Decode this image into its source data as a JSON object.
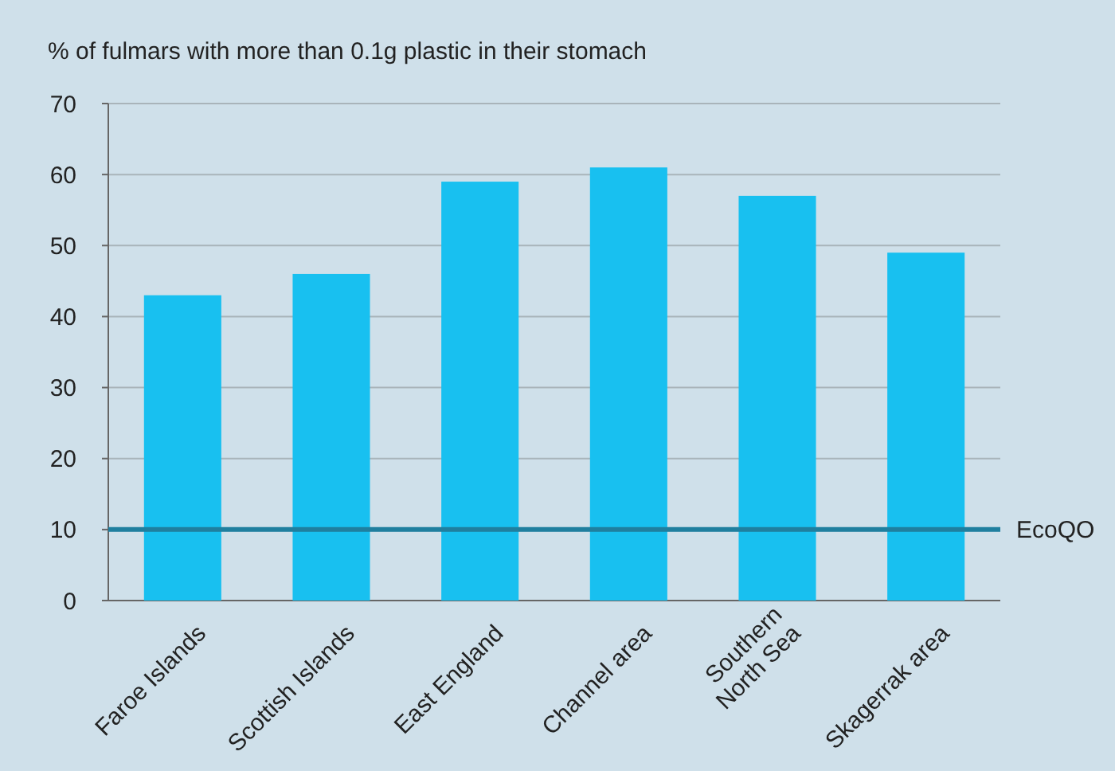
{
  "chart_data": {
    "type": "bar",
    "title": "% of fulmars with more than 0.1g plastic in their stomach",
    "categories": [
      "Faroe Islands",
      "Scottish Islands",
      "East England",
      "Channel area",
      "Southern\nNorth Sea",
      "Skagerrak area"
    ],
    "values": [
      43,
      46,
      59,
      61,
      57,
      49
    ],
    "color": "#18c0f0",
    "ylim": [
      0,
      70
    ],
    "yticks": [
      0,
      10,
      20,
      30,
      40,
      50,
      60,
      70
    ],
    "grid": "y",
    "ref_lines": [
      {
        "axis": "y",
        "value": 10,
        "label": "EcoQO",
        "color": "#1f7f9f"
      }
    ]
  }
}
